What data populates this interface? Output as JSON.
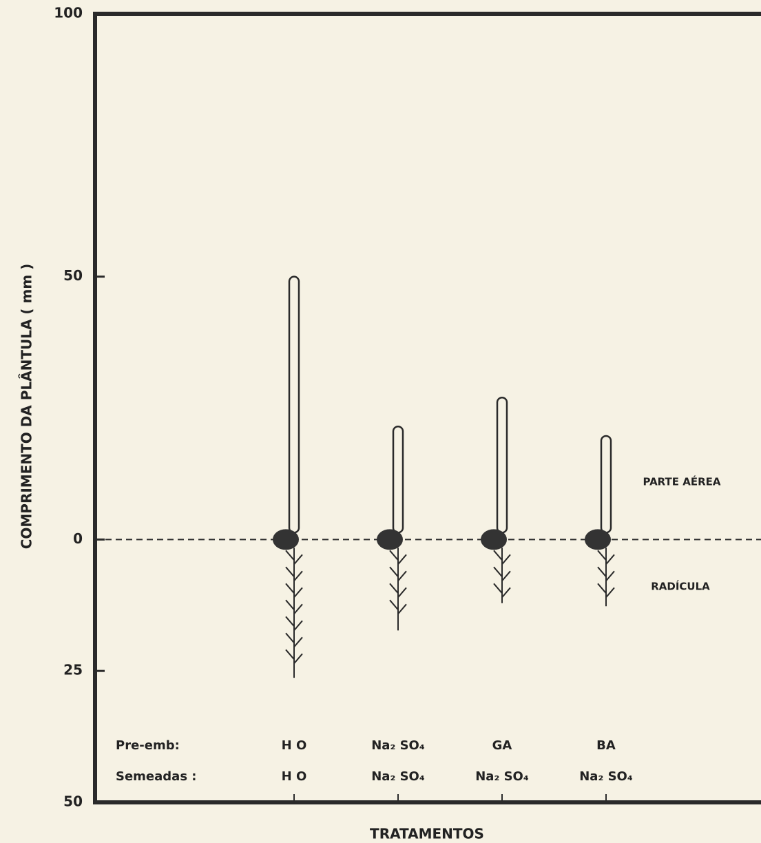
{
  "chart_data": {
    "type": "seedling",
    "y_label": "COMPRIMENTO DA PLÂNTULA ( mm )",
    "x_label": "TRATAMENTOS",
    "row_labels": [
      "Pre-emb:",
      "Semeadas :"
    ],
    "categories": [
      {
        "pre_emb": "H O",
        "semeadas": "H O"
      },
      {
        "pre_emb": "Na₂ SO₄",
        "semeadas": "Na₂ SO₄"
      },
      {
        "pre_emb": "GA",
        "semeadas": "Na₂ SO₄"
      },
      {
        "pre_emb": "BA",
        "semeadas": "Na₂ SO₄"
      }
    ],
    "series": [
      {
        "name": "PARTE AÉREA",
        "color": "#2a2a2a",
        "values": [
          50,
          21.5,
          27,
          19.7
        ]
      },
      {
        "name": "RADÍCULA",
        "color": "#2a2a2a",
        "values": [
          -26.3,
          -17.3,
          -12.1,
          -12.7
        ]
      }
    ],
    "ylim": [
      -50,
      100
    ],
    "yticks": [
      100,
      50,
      0,
      {
        "value": -25,
        "label": "25"
      },
      {
        "value": -50,
        "label": "50"
      }
    ],
    "zero_line": true
  }
}
